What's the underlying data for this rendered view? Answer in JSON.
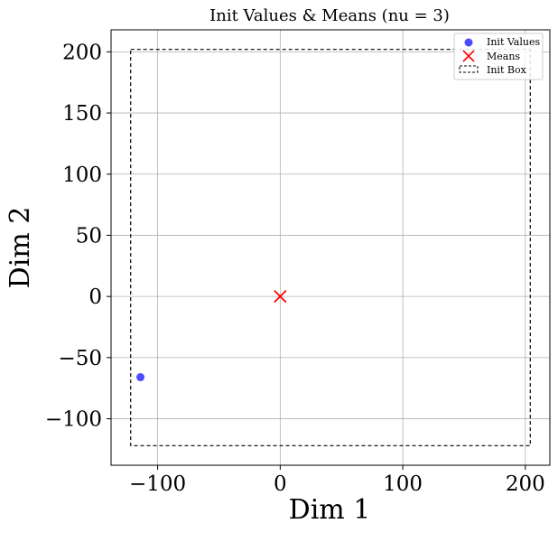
{
  "chart_data": {
    "type": "scatter",
    "title": "Init Values & Means (nu = 3)",
    "xlabel": "Dim 1",
    "ylabel": "Dim 2",
    "xlim": [
      -138,
      220
    ],
    "ylim": [
      -138,
      218
    ],
    "xticks": [
      -100,
      0,
      100,
      200
    ],
    "yticks": [
      -100,
      -50,
      0,
      50,
      100,
      150,
      200
    ],
    "xtick_labels": [
      "−100",
      "0",
      "100",
      "200"
    ],
    "ytick_labels": [
      "−100",
      "−50",
      "0",
      "50",
      "100",
      "150",
      "200"
    ],
    "grid": true,
    "legend_position": "top-right",
    "series": [
      {
        "name": "Init Values",
        "marker": "circle",
        "color": "#0000ff",
        "points": [
          [
            -114,
            -66
          ]
        ]
      },
      {
        "name": "Means",
        "marker": "x",
        "color": "#ff0000",
        "points": [
          [
            0,
            0
          ]
        ]
      }
    ],
    "box": {
      "name": "Init Box",
      "x_range": [
        -122,
        204
      ],
      "y_range": [
        -122,
        202
      ],
      "style": "dashed",
      "color": "#000000"
    }
  }
}
